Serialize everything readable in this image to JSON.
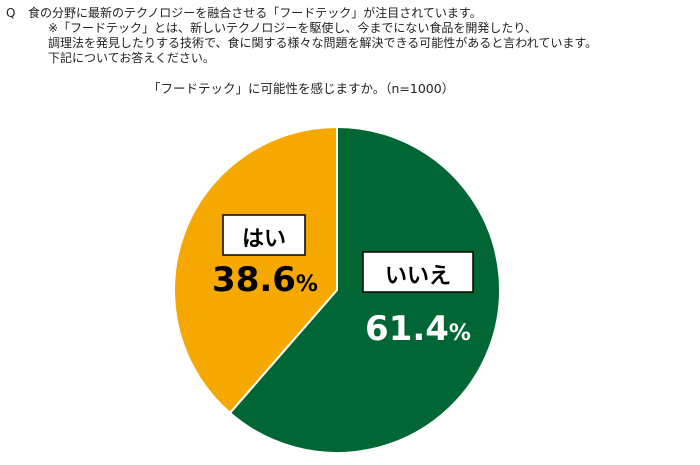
{
  "question": {
    "mark": "Q",
    "lines": [
      "食の分野に最新のテクノロジーを融合させる「フードテック」が注目されています。",
      "※「フードテック」とは、新しいテクノロジーを駆使し、今までにない食品を開発したり、",
      "調理法を発見したりする技術で、食に関する様々な問題を解決できる可能性があると言われています。",
      "下記についてお答えください。"
    ]
  },
  "chart_data": {
    "type": "pie",
    "title": "「フードテック」に可能性を感じますか。（n=1000）",
    "slices": [
      {
        "label": "いいえ",
        "value": 61.4,
        "display": "61.4",
        "color": "#006633"
      },
      {
        "label": "はい",
        "value": 38.6,
        "display": "38.6",
        "color": "#f5a800"
      }
    ],
    "unit": "%",
    "start": "12 o'clock",
    "direction": "clockwise"
  }
}
